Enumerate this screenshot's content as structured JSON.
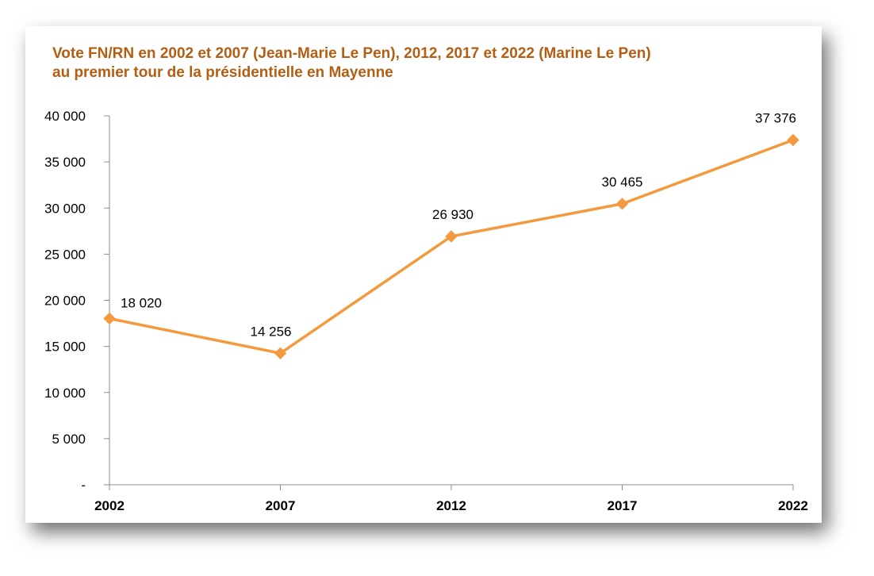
{
  "chart_data": {
    "type": "line",
    "title_line1": "Vote FN/RN en 2002 et 2007 (Jean-Marie Le Pen), 2012, 2017 et 2022 (Marine Le Pen)",
    "title_line2": "au premier tour de  la présidentielle en Mayenne",
    "categories": [
      "2002",
      "2007",
      "2012",
      "2017",
      "2022"
    ],
    "series": [
      {
        "values": [
          18020,
          14256,
          26930,
          30465,
          37376
        ],
        "data_labels": [
          "18 020",
          "14 256",
          "26 930",
          "30 465",
          "37 376"
        ]
      }
    ],
    "ylim": [
      0,
      40000
    ],
    "yticks": [
      0,
      5000,
      10000,
      15000,
      20000,
      25000,
      30000,
      35000,
      40000
    ],
    "ytick_labels": [
      "-",
      "5 000",
      "10 000",
      "15 000",
      "20 000",
      "25 000",
      "30 000",
      "35 000",
      "40 000"
    ],
    "grid": false,
    "line_color": "#f39a3f",
    "title_color": "#b35e12"
  }
}
